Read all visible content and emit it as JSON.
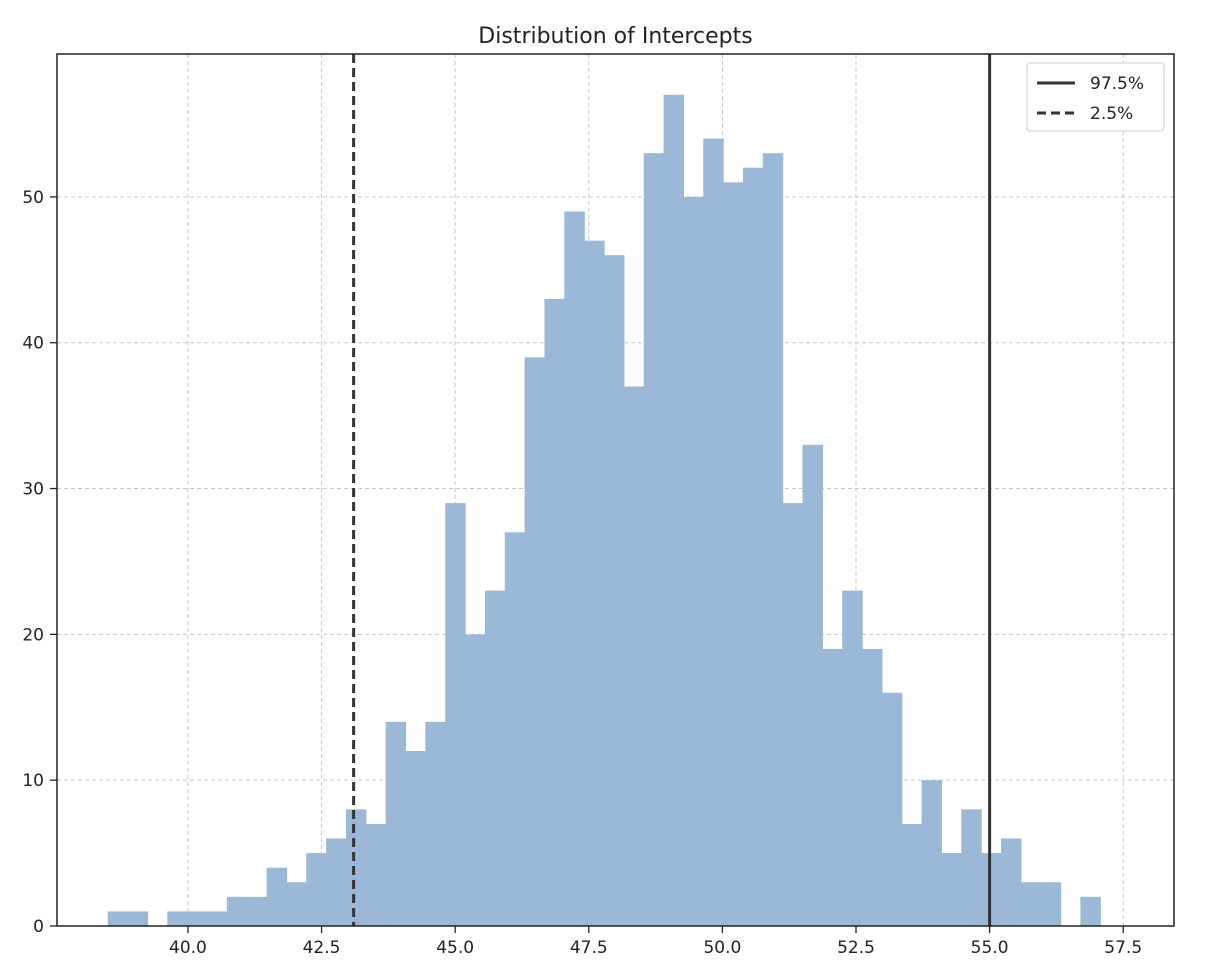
{
  "chart_data": {
    "type": "bar",
    "title": "Distribution of Intercepts",
    "xlabel": "",
    "ylabel": "",
    "xlim": [
      37.55,
      58.45
    ],
    "ylim": [
      0,
      59.8
    ],
    "bin_start": 38.5,
    "bin_width": 0.3714,
    "values": [
      1,
      1,
      0,
      1,
      1,
      1,
      2,
      2,
      4,
      3,
      5,
      6,
      8,
      7,
      14,
      12,
      14,
      29,
      20,
      23,
      27,
      39,
      43,
      49,
      47,
      46,
      37,
      53,
      57,
      50,
      54,
      51,
      52,
      53,
      29,
      33,
      19,
      23,
      19,
      16,
      7,
      10,
      5,
      8,
      5,
      6,
      3,
      3,
      0,
      2
    ],
    "xticks": [
      40.0,
      42.5,
      45.0,
      47.5,
      50.0,
      52.5,
      55.0,
      57.5
    ],
    "xtick_labels": [
      "40.0",
      "42.5",
      "45.0",
      "47.5",
      "50.0",
      "52.5",
      "55.0",
      "57.5"
    ],
    "yticks": [
      0,
      10,
      20,
      30,
      40,
      50
    ],
    "ytick_labels": [
      "0",
      "10",
      "20",
      "30",
      "40",
      "50"
    ],
    "vlines": [
      {
        "name": "97.5%",
        "x": 55.0,
        "style": "solid"
      },
      {
        "name": "2.5%",
        "x": 43.1,
        "style": "dashed"
      }
    ],
    "legend": {
      "placement": "top-right",
      "entries": [
        {
          "label": "97.5%",
          "style": "solid"
        },
        {
          "label": "2.5%",
          "style": "dashed"
        }
      ]
    },
    "grid": true,
    "colors": {
      "bars": "#9bb8d6",
      "lines": "#333333",
      "grid": "#c8c8c8"
    }
  }
}
